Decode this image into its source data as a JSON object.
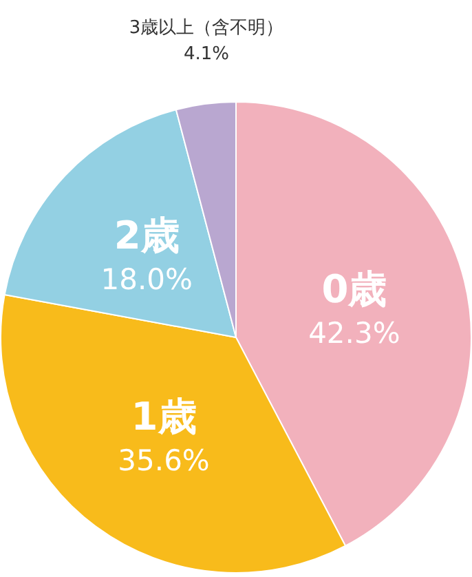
{
  "chart_data": {
    "type": "pie",
    "categories": [
      "0歳",
      "1歳",
      "2歳",
      "3歳以上（含不明）"
    ],
    "values": [
      42.3,
      35.6,
      18.0,
      4.1
    ],
    "colors": [
      "#f2b1bc",
      "#f8bb1b",
      "#93d0e3",
      "#b9a7d0"
    ],
    "value_labels": [
      "42.3%",
      "35.6%",
      "18.0%",
      "4.1%"
    ],
    "legend": false
  }
}
